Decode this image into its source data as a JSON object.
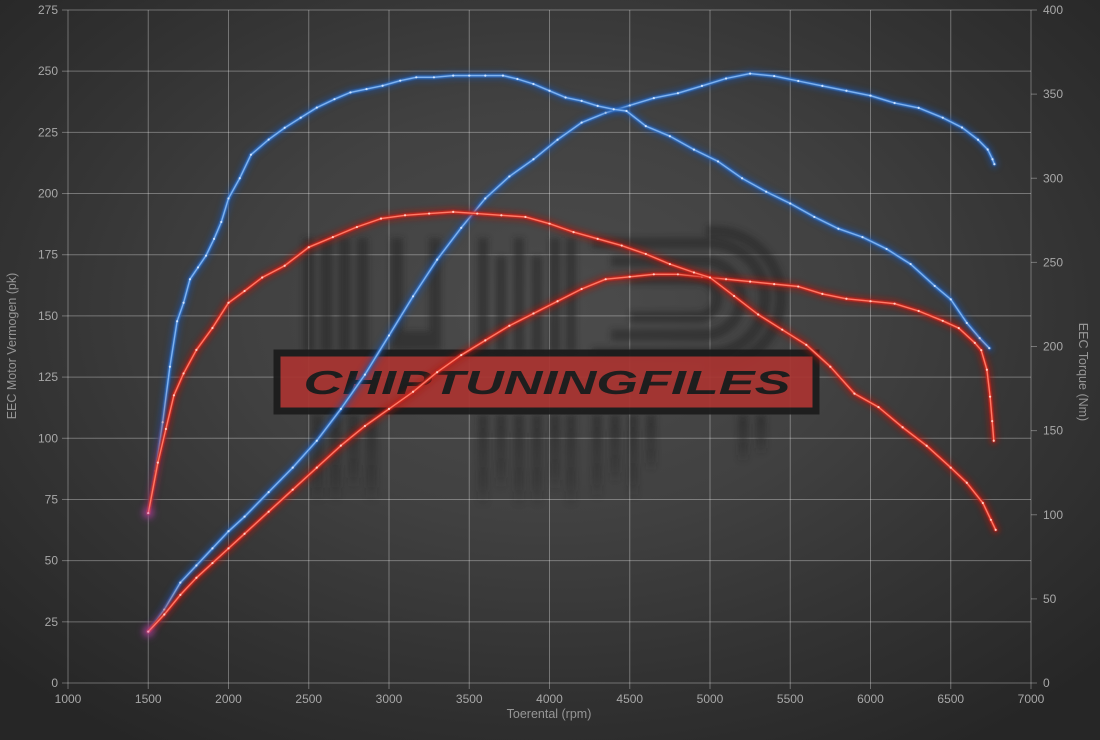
{
  "watermark": {
    "banner_text": "CHIPTUNINGFILES",
    "banner_color": "#a93431",
    "banner_border_color": "#1c1c1c",
    "banner_text_color": "#1b1b1b",
    "logo_color": "#212121"
  },
  "colors": {
    "background_center": "#4c4c4c",
    "background_edge": "#262626",
    "grid": "#8a8a8a",
    "tick_text": "#a8a8a8",
    "axis_title_text": "#969696",
    "blue_curve": "#3174cc",
    "red_curve": "#d6271c",
    "start_blob": "#c84fd0"
  },
  "chart_data": {
    "type": "line",
    "title": "",
    "xlabel": "Toerental (rpm)",
    "ylabel_left": "EEC Motor Vermogen (pk)",
    "ylabel_right": "EEC Torque (Nm)",
    "x_range": [
      1000,
      7000
    ],
    "y_left_range": [
      0,
      275
    ],
    "y_right_range": [
      0,
      400
    ],
    "x_ticks": [
      "1000",
      "1500",
      "2000",
      "2500",
      "3000",
      "3500",
      "4000",
      "4500",
      "5000",
      "5500",
      "6000",
      "6500",
      "7000"
    ],
    "y_left_ticks": [
      "0",
      "25",
      "50",
      "75",
      "100",
      "125",
      "150",
      "175",
      "200",
      "225",
      "250",
      "275"
    ],
    "y_right_ticks": [
      "0",
      "50",
      "100",
      "150",
      "200",
      "250",
      "300",
      "350",
      "400"
    ],
    "grid": "on (vertical at x ticks, horizontal at left-axis ticks)",
    "legend": "none",
    "series": [
      {
        "id": "power-blue",
        "axis": "left",
        "unit": "pk",
        "color": "blue",
        "points": [
          [
            1500,
            21
          ],
          [
            1600,
            30
          ],
          [
            1700,
            41
          ],
          [
            1800,
            48
          ],
          [
            1900,
            55
          ],
          [
            2000,
            62
          ],
          [
            2100,
            68
          ],
          [
            2250,
            78
          ],
          [
            2400,
            88
          ],
          [
            2550,
            99
          ],
          [
            2700,
            112
          ],
          [
            2850,
            126
          ],
          [
            3000,
            142
          ],
          [
            3150,
            158
          ],
          [
            3300,
            173
          ],
          [
            3450,
            186
          ],
          [
            3600,
            198
          ],
          [
            3750,
            207
          ],
          [
            3900,
            214
          ],
          [
            4050,
            222
          ],
          [
            4200,
            229
          ],
          [
            4350,
            233
          ],
          [
            4500,
            236
          ],
          [
            4650,
            239
          ],
          [
            4800,
            241
          ],
          [
            4950,
            244
          ],
          [
            5100,
            247
          ],
          [
            5250,
            249
          ],
          [
            5400,
            248
          ],
          [
            5550,
            246
          ],
          [
            5700,
            244
          ],
          [
            5850,
            242
          ],
          [
            6000,
            240
          ],
          [
            6150,
            237
          ],
          [
            6300,
            235
          ],
          [
            6450,
            231
          ],
          [
            6570,
            227
          ],
          [
            6670,
            222
          ],
          [
            6730,
            218
          ],
          [
            6760,
            214
          ],
          [
            6772,
            212
          ]
        ]
      },
      {
        "id": "torque-blue",
        "axis": "right",
        "unit": "Nm",
        "color": "blue",
        "points": [
          [
            1500,
            101
          ],
          [
            1545,
            126
          ],
          [
            1590,
            155
          ],
          [
            1635,
            188
          ],
          [
            1680,
            215
          ],
          [
            1720,
            226
          ],
          [
            1760,
            240
          ],
          [
            1810,
            247
          ],
          [
            1860,
            254
          ],
          [
            1910,
            264
          ],
          [
            1955,
            274
          ],
          [
            2000,
            288
          ],
          [
            2070,
            300
          ],
          [
            2140,
            314
          ],
          [
            2250,
            323
          ],
          [
            2350,
            330
          ],
          [
            2450,
            336
          ],
          [
            2550,
            342
          ],
          [
            2660,
            347
          ],
          [
            2760,
            351
          ],
          [
            2860,
            353
          ],
          [
            2960,
            355
          ],
          [
            3070,
            358
          ],
          [
            3170,
            360
          ],
          [
            3280,
            360
          ],
          [
            3400,
            361
          ],
          [
            3500,
            361
          ],
          [
            3600,
            361
          ],
          [
            3710,
            361
          ],
          [
            3800,
            359
          ],
          [
            3900,
            356
          ],
          [
            4000,
            352
          ],
          [
            4100,
            348
          ],
          [
            4200,
            346
          ],
          [
            4300,
            343
          ],
          [
            4400,
            341
          ],
          [
            4480,
            340
          ],
          [
            4600,
            331
          ],
          [
            4750,
            325
          ],
          [
            4900,
            317
          ],
          [
            5050,
            310
          ],
          [
            5200,
            300
          ],
          [
            5350,
            292
          ],
          [
            5500,
            285
          ],
          [
            5650,
            277
          ],
          [
            5800,
            270
          ],
          [
            5950,
            265
          ],
          [
            6100,
            258
          ],
          [
            6250,
            249
          ],
          [
            6400,
            236
          ],
          [
            6500,
            228
          ],
          [
            6600,
            214
          ],
          [
            6680,
            205
          ],
          [
            6740,
            199
          ]
        ]
      },
      {
        "id": "power-red",
        "axis": "left",
        "unit": "pk",
        "color": "red",
        "points": [
          [
            1500,
            21
          ],
          [
            1600,
            28
          ],
          [
            1700,
            36
          ],
          [
            1800,
            43
          ],
          [
            1900,
            49
          ],
          [
            2000,
            55
          ],
          [
            2100,
            61
          ],
          [
            2250,
            70
          ],
          [
            2400,
            79
          ],
          [
            2550,
            88
          ],
          [
            2700,
            97
          ],
          [
            2850,
            105
          ],
          [
            3000,
            112
          ],
          [
            3150,
            119
          ],
          [
            3300,
            127
          ],
          [
            3450,
            134
          ],
          [
            3600,
            140
          ],
          [
            3750,
            146
          ],
          [
            3900,
            151
          ],
          [
            4050,
            156
          ],
          [
            4200,
            161
          ],
          [
            4350,
            165
          ],
          [
            4500,
            166
          ],
          [
            4650,
            167
          ],
          [
            4800,
            167
          ],
          [
            4950,
            166
          ],
          [
            5100,
            165
          ],
          [
            5250,
            164
          ],
          [
            5400,
            163
          ],
          [
            5550,
            162
          ],
          [
            5700,
            159
          ],
          [
            5850,
            157
          ],
          [
            6000,
            156
          ],
          [
            6150,
            155
          ],
          [
            6300,
            152
          ],
          [
            6450,
            148
          ],
          [
            6550,
            145
          ],
          [
            6650,
            139
          ],
          [
            6690,
            136
          ],
          [
            6725,
            128
          ],
          [
            6745,
            117
          ],
          [
            6758,
            107
          ],
          [
            6768,
            99
          ]
        ]
      },
      {
        "id": "torque-red",
        "axis": "right",
        "unit": "Nm",
        "color": "red",
        "points": [
          [
            1500,
            101
          ],
          [
            1560,
            131
          ],
          [
            1610,
            151
          ],
          [
            1660,
            171
          ],
          [
            1720,
            184
          ],
          [
            1800,
            198
          ],
          [
            1900,
            211
          ],
          [
            2000,
            226
          ],
          [
            2100,
            233
          ],
          [
            2210,
            241
          ],
          [
            2350,
            248
          ],
          [
            2500,
            259
          ],
          [
            2650,
            265
          ],
          [
            2800,
            271
          ],
          [
            2950,
            276
          ],
          [
            3100,
            278
          ],
          [
            3250,
            279
          ],
          [
            3400,
            280
          ],
          [
            3550,
            279
          ],
          [
            3700,
            278
          ],
          [
            3850,
            277
          ],
          [
            4000,
            273
          ],
          [
            4150,
            268
          ],
          [
            4300,
            264
          ],
          [
            4450,
            260
          ],
          [
            4600,
            255
          ],
          [
            4750,
            249
          ],
          [
            4900,
            244
          ],
          [
            5000,
            241
          ],
          [
            5150,
            230
          ],
          [
            5300,
            219
          ],
          [
            5450,
            210
          ],
          [
            5600,
            201
          ],
          [
            5750,
            188
          ],
          [
            5900,
            172
          ],
          [
            6050,
            164
          ],
          [
            6200,
            152
          ],
          [
            6350,
            141
          ],
          [
            6500,
            128
          ],
          [
            6600,
            119
          ],
          [
            6700,
            107
          ],
          [
            6750,
            97
          ],
          [
            6780,
            91
          ]
        ]
      }
    ]
  }
}
